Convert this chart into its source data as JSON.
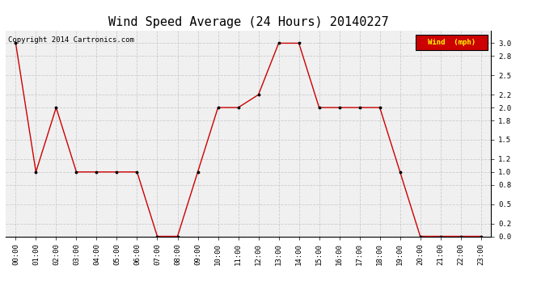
{
  "title": "Wind Speed Average (24 Hours) 20140227",
  "copyright": "Copyright 2014 Cartronics.com",
  "legend_label": "Wind  (mph)",
  "legend_bg": "#cc0000",
  "legend_text_color": "#ffff00",
  "x_labels": [
    "00:00",
    "01:00",
    "02:00",
    "03:00",
    "04:00",
    "05:00",
    "06:00",
    "07:00",
    "08:00",
    "09:00",
    "10:00",
    "11:00",
    "12:00",
    "13:00",
    "14:00",
    "15:00",
    "16:00",
    "17:00",
    "18:00",
    "19:00",
    "20:00",
    "21:00",
    "22:00",
    "23:00"
  ],
  "x_values": [
    0,
    1,
    2,
    3,
    4,
    5,
    6,
    7,
    8,
    9,
    10,
    11,
    12,
    13,
    14,
    15,
    16,
    17,
    18,
    19,
    20,
    21,
    22,
    23
  ],
  "y_values": [
    3.0,
    1.0,
    2.0,
    1.0,
    1.0,
    1.0,
    1.0,
    0.0,
    0.0,
    1.0,
    2.0,
    2.0,
    2.2,
    3.0,
    3.0,
    2.0,
    2.0,
    2.0,
    2.0,
    1.0,
    0.0,
    0.0,
    0.0,
    0.0
  ],
  "line_color": "#cc0000",
  "marker_color": "#000000",
  "bg_color": "#ffffff",
  "plot_bg_color": "#f0f0f0",
  "grid_color": "#cccccc",
  "ylim": [
    0.0,
    3.2
  ],
  "ytick_values": [
    0.0,
    0.2,
    0.5,
    0.8,
    1.0,
    1.2,
    1.5,
    1.8,
    2.0,
    2.2,
    2.5,
    2.8,
    3.0
  ],
  "ytick_labels": [
    "0.0",
    "0.2",
    "0.5",
    "0.8",
    "1.0",
    "1.2",
    "1.5",
    "1.8",
    "2.0",
    "2.2",
    "2.5",
    "2.8",
    "3.0"
  ],
  "title_fontsize": 11,
  "copyright_fontsize": 6.5,
  "tick_fontsize": 6.5
}
